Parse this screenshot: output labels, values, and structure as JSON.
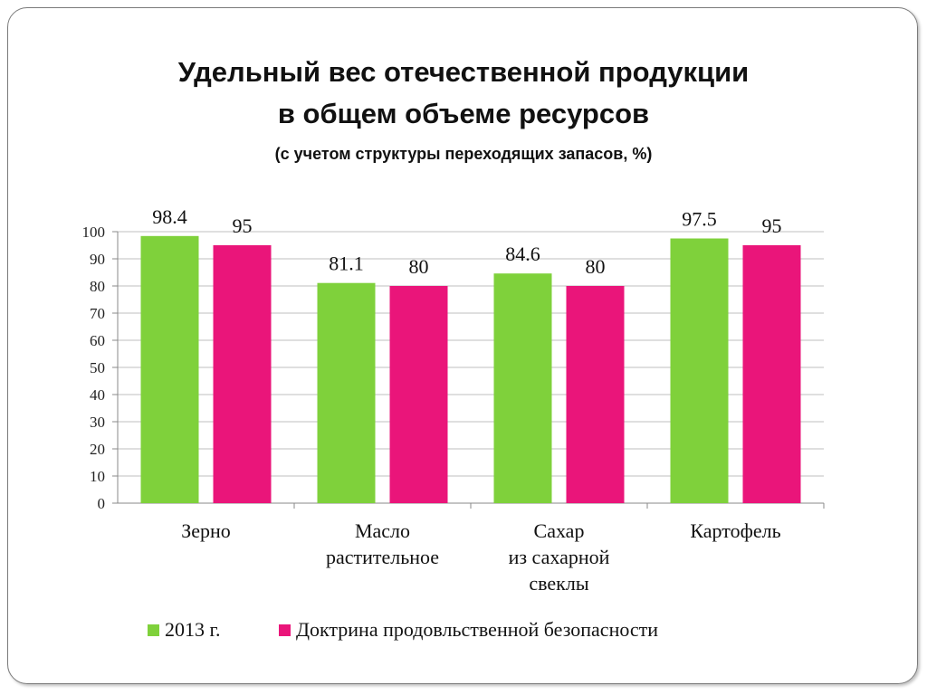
{
  "title_line1": "Удельный вес отечественной продукции",
  "title_line2": "в общем объеме ресурсов",
  "subtitle": "(с учетом структуры переходящих запасов, %)",
  "colors": {
    "series_2013": "#7fd13b",
    "series_doctrine": "#ea157a",
    "grid": "#bfbfbf",
    "axis": "#888888"
  },
  "chart_data": {
    "type": "bar",
    "categories": [
      [
        "Зерно"
      ],
      [
        "Масло",
        "растительное"
      ],
      [
        "Сахар",
        "из сахарной",
        "свеклы"
      ],
      [
        "Картофель"
      ]
    ],
    "series": [
      {
        "name": "2013 г.",
        "values": [
          98.4,
          81.1,
          84.6,
          97.5
        ],
        "labels": [
          "98.4",
          "81.1",
          "84.6",
          "97.5"
        ]
      },
      {
        "name": "Доктрина продовльственной безопасности",
        "values": [
          95,
          80,
          80,
          95
        ],
        "labels": [
          "95",
          "80",
          "80",
          "95"
        ]
      }
    ],
    "ylim": [
      0,
      100
    ],
    "yticks": [
      0,
      10,
      20,
      30,
      40,
      50,
      60,
      70,
      80,
      90,
      100
    ],
    "grid": true,
    "legend_position": "bottom"
  }
}
